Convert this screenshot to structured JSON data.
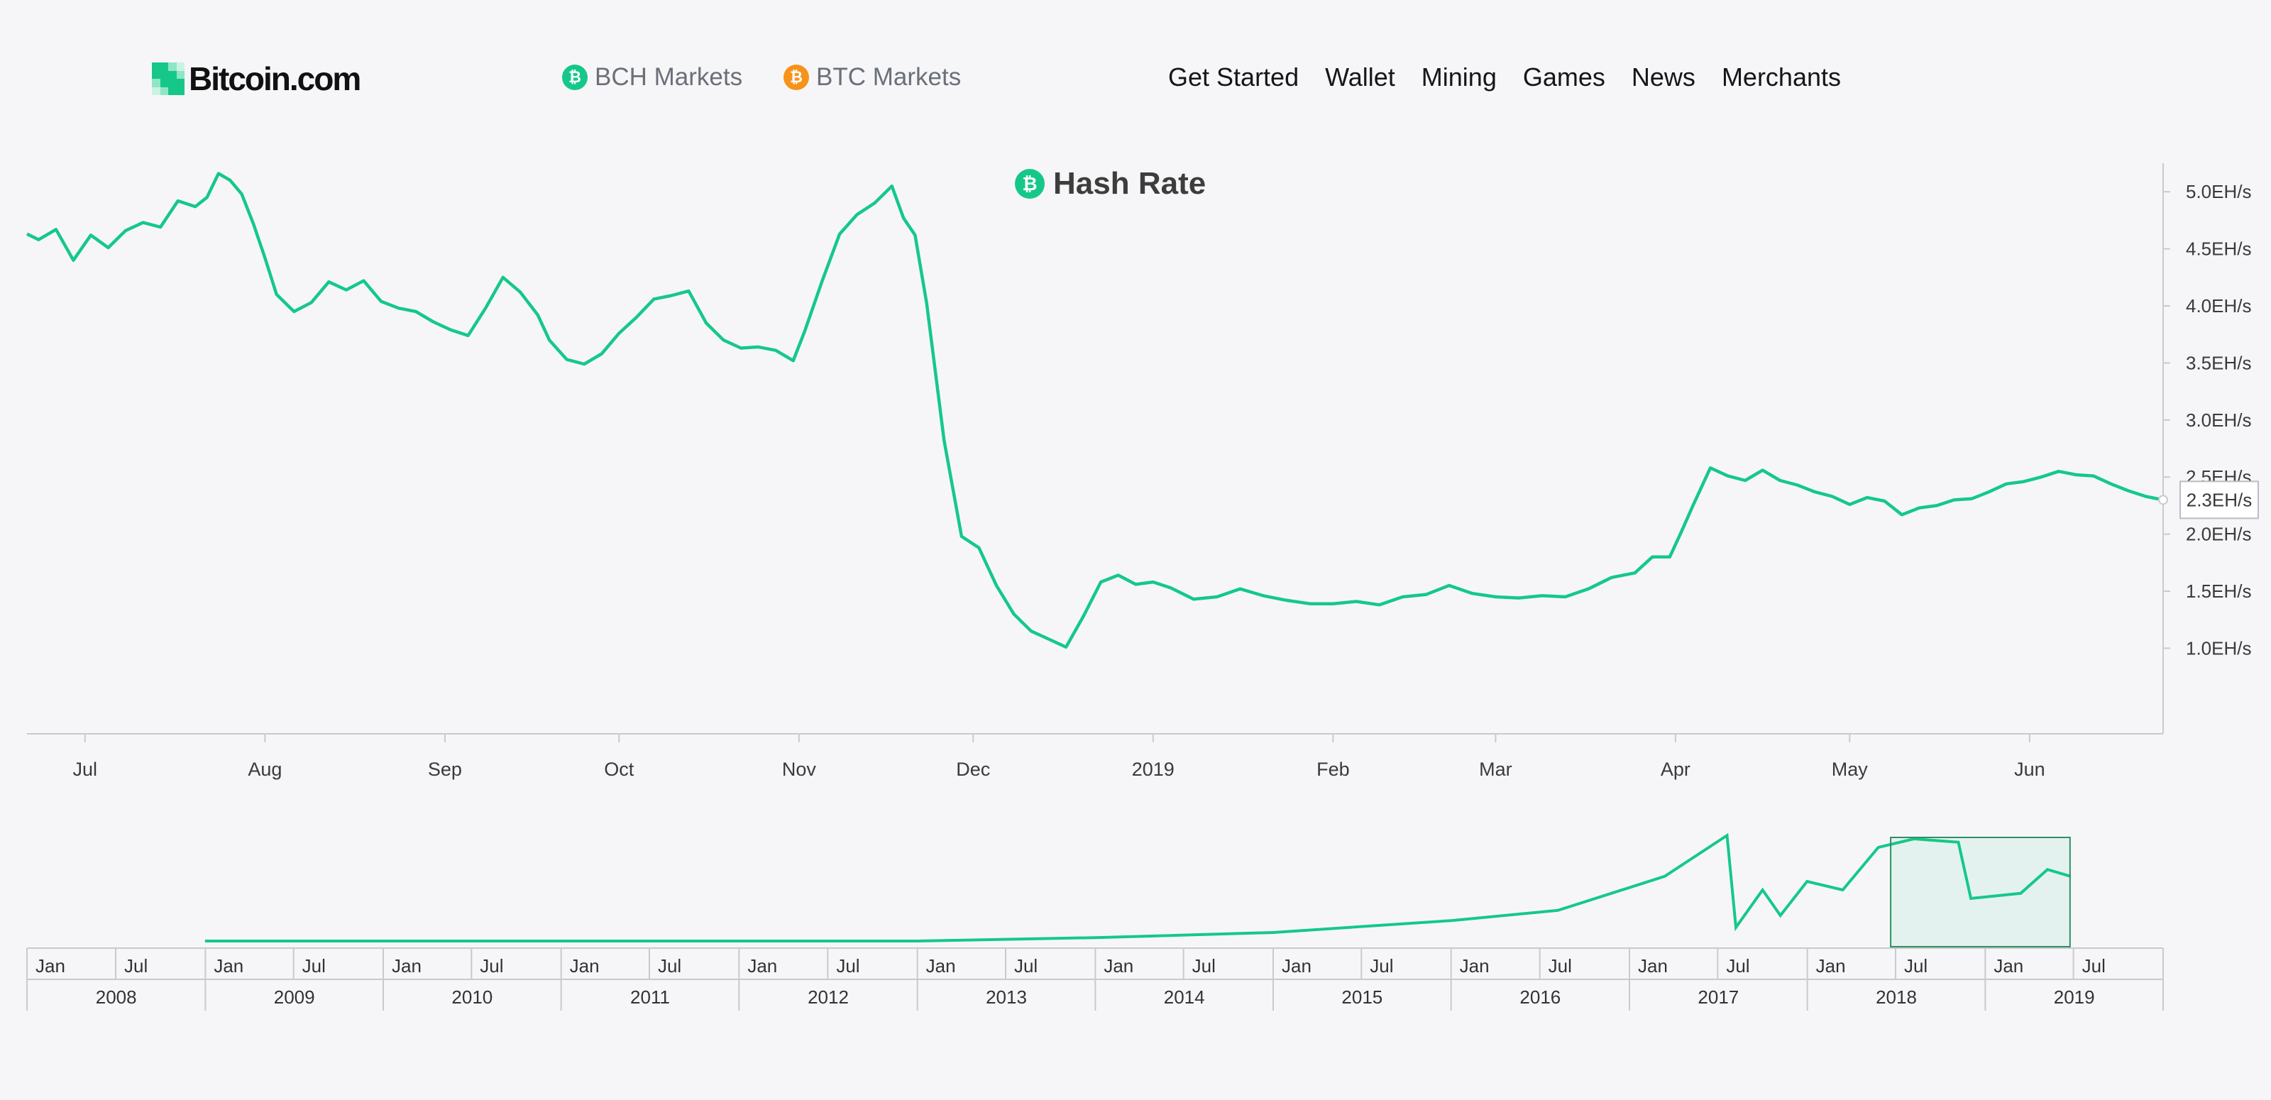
{
  "header": {
    "logo_text": "Bitcoin.com",
    "markets": [
      {
        "label": "BCH Markets",
        "color": "#15c88a",
        "icon": "bch-coin-icon"
      },
      {
        "label": "BTC Markets",
        "color": "#f7931a",
        "icon": "btc-coin-icon"
      }
    ],
    "nav": [
      "Get Started",
      "Wallet",
      "Mining",
      "Games",
      "News",
      "Merchants"
    ]
  },
  "colors": {
    "accent": "#15c88a",
    "btc": "#f7931a",
    "background": "#f6f6f8"
  },
  "chart_data": {
    "type": "line",
    "title": "Hash Rate",
    "y_unit": "EH/s",
    "y_ticks": [
      "1.0EH/s",
      "1.5EH/s",
      "2.0EH/s",
      "2.5EH/s",
      "3.0EH/s",
      "3.5EH/s",
      "4.0EH/s",
      "4.5EH/s",
      "5.0EH/s"
    ],
    "y_tick_values": [
      1.0,
      1.5,
      2.0,
      2.5,
      3.0,
      3.5,
      4.0,
      4.5,
      5.0
    ],
    "ylim": [
      0.25,
      5.25
    ],
    "x_ticks": [
      {
        "label": "Jul",
        "date": "2018-07-01"
      },
      {
        "label": "Aug",
        "date": "2018-08-01"
      },
      {
        "label": "Sep",
        "date": "2018-09-01"
      },
      {
        "label": "Oct",
        "date": "2018-10-01"
      },
      {
        "label": "Nov",
        "date": "2018-11-01"
      },
      {
        "label": "Dec",
        "date": "2018-12-01"
      },
      {
        "label": "2019",
        "date": "2019-01-01"
      },
      {
        "label": "Feb",
        "date": "2019-02-01"
      },
      {
        "label": "Mar",
        "date": "2019-03-01"
      },
      {
        "label": "Apr",
        "date": "2019-04-01"
      },
      {
        "label": "May",
        "date": "2019-05-01"
      },
      {
        "label": "Jun",
        "date": "2019-06-01"
      }
    ],
    "xlim": [
      "2018-06-21",
      "2019-06-24"
    ],
    "current_value_label": "2.3EH/s",
    "series": [
      {
        "color": "#15c88a",
        "x": [
          "2018-06-21",
          "2018-06-23",
          "2018-06-26",
          "2018-06-29",
          "2018-07-02",
          "2018-07-05",
          "2018-07-08",
          "2018-07-11",
          "2018-07-14",
          "2018-07-17",
          "2018-07-20",
          "2018-07-22",
          "2018-07-24",
          "2018-07-26",
          "2018-07-28",
          "2018-07-30",
          "2018-08-01",
          "2018-08-03",
          "2018-08-06",
          "2018-08-09",
          "2018-08-12",
          "2018-08-15",
          "2018-08-18",
          "2018-08-21",
          "2018-08-24",
          "2018-08-27",
          "2018-08-30",
          "2018-09-02",
          "2018-09-05",
          "2018-09-08",
          "2018-09-11",
          "2018-09-14",
          "2018-09-17",
          "2018-09-19",
          "2018-09-22",
          "2018-09-25",
          "2018-09-28",
          "2018-10-01",
          "2018-10-04",
          "2018-10-07",
          "2018-10-10",
          "2018-10-13",
          "2018-10-16",
          "2018-10-19",
          "2018-10-22",
          "2018-10-25",
          "2018-10-28",
          "2018-10-31",
          "2018-11-02",
          "2018-11-05",
          "2018-11-08",
          "2018-11-11",
          "2018-11-14",
          "2018-11-17",
          "2018-11-19",
          "2018-11-21",
          "2018-11-23",
          "2018-11-26",
          "2018-11-29",
          "2018-12-02",
          "2018-12-05",
          "2018-12-08",
          "2018-12-11",
          "2018-12-14",
          "2018-12-17",
          "2018-12-20",
          "2018-12-23",
          "2018-12-26",
          "2018-12-29",
          "2019-01-01",
          "2019-01-04",
          "2019-01-08",
          "2019-01-12",
          "2019-01-16",
          "2019-01-20",
          "2019-01-24",
          "2019-01-28",
          "2019-02-01",
          "2019-02-05",
          "2019-02-09",
          "2019-02-13",
          "2019-02-17",
          "2019-02-21",
          "2019-02-25",
          "2019-03-01",
          "2019-03-05",
          "2019-03-09",
          "2019-03-13",
          "2019-03-17",
          "2019-03-21",
          "2019-03-25",
          "2019-03-28",
          "2019-03-31",
          "2019-04-02",
          "2019-04-04",
          "2019-04-07",
          "2019-04-10",
          "2019-04-13",
          "2019-04-16",
          "2019-04-19",
          "2019-04-22",
          "2019-04-25",
          "2019-04-28",
          "2019-05-01",
          "2019-05-04",
          "2019-05-07",
          "2019-05-10",
          "2019-05-13",
          "2019-05-16",
          "2019-05-19",
          "2019-05-22",
          "2019-05-25",
          "2019-05-28",
          "2019-05-31",
          "2019-06-03",
          "2019-06-06",
          "2019-06-09",
          "2019-06-12",
          "2019-06-15",
          "2019-06-18",
          "2019-06-21",
          "2019-06-24"
        ],
        "values": [
          4.63,
          4.58,
          4.67,
          4.4,
          4.62,
          4.51,
          4.66,
          4.73,
          4.69,
          4.92,
          4.87,
          4.95,
          5.16,
          5.1,
          4.98,
          4.72,
          4.42,
          4.1,
          3.95,
          4.03,
          4.21,
          4.14,
          4.22,
          4.04,
          3.98,
          3.95,
          3.86,
          3.79,
          3.74,
          3.98,
          4.25,
          4.12,
          3.92,
          3.7,
          3.53,
          3.49,
          3.58,
          3.76,
          3.9,
          4.06,
          4.09,
          4.13,
          3.85,
          3.7,
          3.63,
          3.64,
          3.61,
          3.52,
          3.78,
          4.22,
          4.63,
          4.8,
          4.9,
          5.05,
          4.77,
          4.62,
          4.02,
          2.82,
          1.98,
          1.88,
          1.55,
          1.3,
          1.15,
          1.08,
          1.01,
          1.28,
          1.58,
          1.64,
          1.56,
          1.58,
          1.53,
          1.43,
          1.45,
          1.52,
          1.46,
          1.42,
          1.39,
          1.39,
          1.41,
          1.38,
          1.45,
          1.47,
          1.55,
          1.48,
          1.45,
          1.44,
          1.46,
          1.45,
          1.52,
          1.62,
          1.66,
          1.8,
          1.8,
          2.02,
          2.25,
          2.58,
          2.51,
          2.47,
          2.56,
          2.47,
          2.43,
          2.37,
          2.33,
          2.26,
          2.32,
          2.29,
          2.17,
          2.23,
          2.25,
          2.3,
          2.31,
          2.37,
          2.44,
          2.46,
          2.5,
          2.55,
          2.52,
          2.51,
          2.44,
          2.38,
          2.33,
          2.3
        ]
      }
    ],
    "navigator": {
      "year_labels": [
        "2008",
        "2009",
        "2010",
        "2011",
        "2012",
        "2013",
        "2014",
        "2015",
        "2016",
        "2017",
        "2018",
        "2019"
      ],
      "half_labels": [
        "Jan",
        "Jul"
      ],
      "last_half_labels": [
        "Jul"
      ],
      "selected_range": [
        "2018-06-21",
        "2019-06-24"
      ]
    }
  }
}
